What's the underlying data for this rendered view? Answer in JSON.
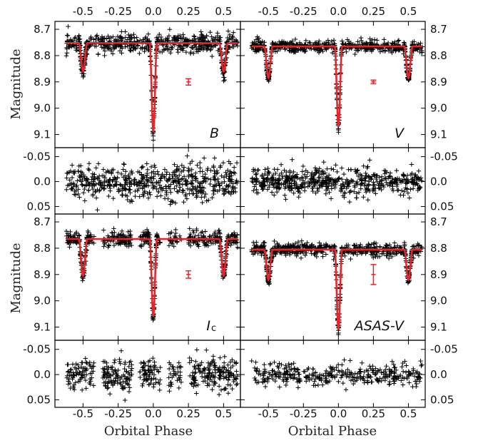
{
  "chart_data": {
    "type": "scatter",
    "layout": "4 rows x 2 columns: light-curve rows with residual rows beneath",
    "xlabel": "Orbital Phase",
    "xlim": [
      -0.7,
      0.62
    ],
    "xticks": [
      "-0.5",
      "-0.25",
      "0.0",
      "0.25",
      "0.5"
    ],
    "xtick_values": [
      -0.5,
      -0.25,
      0.0,
      0.25,
      0.5
    ],
    "light_curve_ylabel": "Magnitude",
    "light_curve_ylim": [
      9.15,
      8.67
    ],
    "light_curve_yticks": [
      "8.7",
      "8.8",
      "8.9",
      "9.0",
      "9.1"
    ],
    "light_curve_ytick_values": [
      8.7,
      8.8,
      8.9,
      9.0,
      9.1
    ],
    "residual_ylim": [
      0.065,
      -0.068
    ],
    "residual_yticks": [
      "-0.05",
      "0.0",
      "0.05"
    ],
    "residual_ytick_values": [
      -0.05,
      0.0,
      0.05
    ],
    "data_color": "#000000",
    "model_color": "#e8242a",
    "marker": "plus",
    "panels": [
      {
        "band": "B",
        "band_sub": "",
        "column": 0,
        "row": 0,
        "baseline": 8.752,
        "primary_depth": 9.09,
        "secondary_depth": 8.86,
        "primary_width": 0.026,
        "secondary_width": 0.03,
        "scatter": 0.018,
        "ingress_slope": 0.008,
        "errorbar": {
          "phase": 0.25,
          "mag": 8.9,
          "err": 0.012
        },
        "residual_scatter": 0.018,
        "seg_a": [
          -0.62,
          0.6
        ]
      },
      {
        "band": "V",
        "band_sub": "",
        "column": 1,
        "row": 0,
        "baseline": 8.765,
        "primary_depth": 9.07,
        "secondary_depth": 8.885,
        "primary_width": 0.026,
        "secondary_width": 0.03,
        "scatter": 0.011,
        "ingress_slope": 0.0,
        "errorbar": {
          "phase": 0.25,
          "mag": 8.9,
          "err": 0.007
        },
        "residual_scatter": 0.013,
        "seg_a": [
          -0.62,
          0.6
        ]
      },
      {
        "band": "I",
        "band_sub": "c",
        "column": 0,
        "row": 1,
        "baseline": 8.765,
        "primary_depth": 9.06,
        "secondary_depth": 8.905,
        "primary_width": 0.026,
        "secondary_width": 0.03,
        "scatter": 0.015,
        "ingress_slope": 0.0,
        "errorbar": {
          "phase": 0.25,
          "mag": 8.9,
          "err": 0.014
        },
        "residual_scatter": 0.016,
        "gaps": [
          [
            -0.42,
            -0.36
          ],
          [
            -0.15,
            -0.1
          ],
          [
            0.05,
            0.11
          ],
          [
            0.2,
            0.25
          ]
        ],
        "seg_a": [
          -0.62,
          0.6
        ]
      },
      {
        "band": "ASAS-V",
        "band_sub": "",
        "column": 1,
        "row": 1,
        "baseline": 8.805,
        "primary_depth": 9.11,
        "secondary_depth": 8.92,
        "primary_width": 0.026,
        "secondary_width": 0.03,
        "scatter": 0.012,
        "ingress_slope": 0.0,
        "errorbar": {
          "phase": 0.25,
          "mag": 8.9,
          "err": 0.038
        },
        "residual_scatter": 0.012,
        "seg_a": [
          -0.62,
          0.6
        ]
      }
    ]
  }
}
